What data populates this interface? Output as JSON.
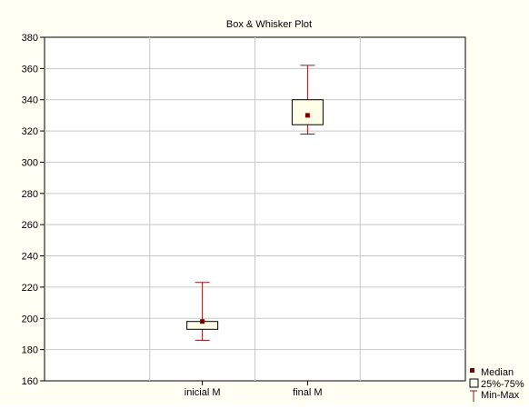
{
  "chart_data": {
    "type": "box",
    "title": "Box & Whisker Plot",
    "categories": [
      "inicial M",
      "final M"
    ],
    "boxes": [
      {
        "category": "inicial M",
        "min": 186,
        "q1": 193,
        "median": 198,
        "q3": 198,
        "max": 223
      },
      {
        "category": "final M",
        "min": 318,
        "q1": 324,
        "median": 330,
        "q3": 340,
        "max": 362
      }
    ],
    "ylim": [
      160,
      380
    ],
    "yticks": [
      160,
      180,
      200,
      220,
      240,
      260,
      280,
      300,
      320,
      340,
      360,
      380
    ],
    "grid": true,
    "legend": {
      "position": "bottom-right",
      "entries": [
        "Median",
        "25%-75%",
        "Min-Max"
      ]
    },
    "colors": {
      "series": "#8b1a1a",
      "median": "#7a0000",
      "box_fill": "#ffffe8",
      "plot_bg": "#ffffff",
      "chart_bg": "#fffff4",
      "grid": "#c8c8c8"
    }
  }
}
